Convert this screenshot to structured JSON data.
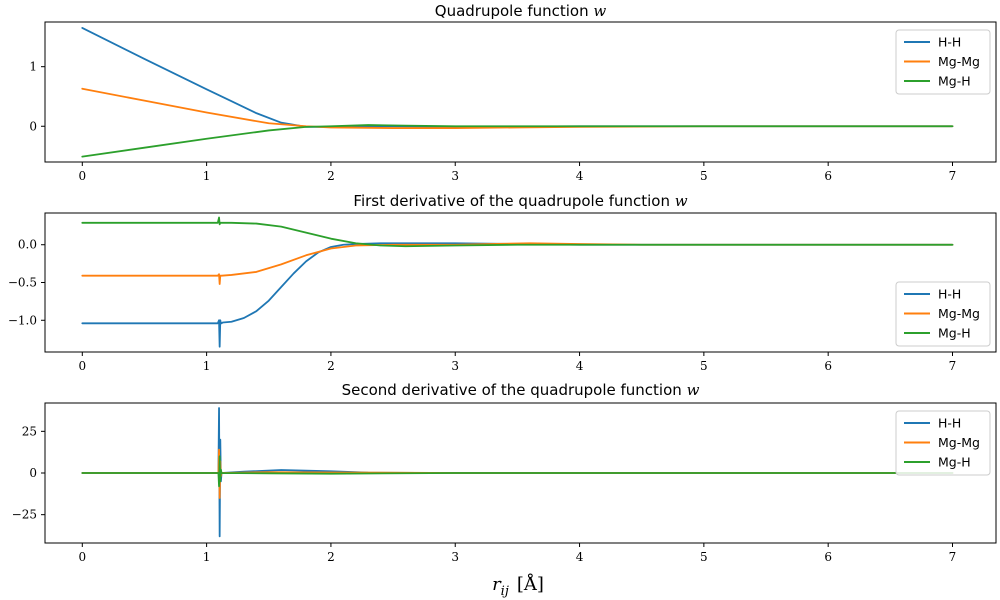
{
  "chart_data": [
    {
      "type": "line",
      "title": "Quadrupole function w",
      "title_prefix": "Quadrupole function",
      "title_var": "w",
      "xlabel": "",
      "ylabel": "",
      "xlim": [
        -0.3,
        7.35
      ],
      "ylim": [
        -0.6,
        1.75
      ],
      "xticks": [
        0,
        1,
        2,
        3,
        4,
        5,
        6,
        7
      ],
      "yticks": [
        0,
        1
      ],
      "legend": "top-right",
      "grid": false,
      "series": [
        {
          "name": "H-H",
          "color": "#1f77b4",
          "x": [
            0,
            0.5,
            1.0,
            1.2,
            1.4,
            1.6,
            1.8,
            2.0,
            2.2,
            2.5,
            3.0,
            4.0,
            5.0,
            6.0,
            7.0
          ],
          "y": [
            1.65,
            1.13,
            0.62,
            0.42,
            0.22,
            0.06,
            -0.01,
            -0.01,
            0.0,
            0.0,
            -0.01,
            0.0,
            0.0,
            0.0,
            0.0
          ]
        },
        {
          "name": "Mg-Mg",
          "color": "#ff7f0e",
          "x": [
            0,
            0.5,
            1.0,
            1.5,
            1.8,
            2.0,
            2.5,
            3.0,
            3.5,
            4.0,
            5.0,
            6.0,
            7.0
          ],
          "y": [
            0.63,
            0.43,
            0.23,
            0.05,
            0.0,
            -0.02,
            -0.03,
            -0.03,
            -0.02,
            -0.01,
            0.0,
            0.0,
            0.0
          ]
        },
        {
          "name": "Mg-H",
          "color": "#2ca02c",
          "x": [
            0,
            0.5,
            1.0,
            1.5,
            1.8,
            2.0,
            2.3,
            2.6,
            3.0,
            4.0,
            5.0,
            6.0,
            7.0
          ],
          "y": [
            -0.51,
            -0.36,
            -0.21,
            -0.07,
            -0.01,
            0.0,
            0.02,
            0.01,
            0.0,
            0.0,
            0.0,
            0.0,
            0.0
          ]
        }
      ]
    },
    {
      "type": "line",
      "title": "First derivative of the quadrupole function w",
      "title_prefix": "First derivative of the quadrupole function",
      "title_var": "w",
      "xlabel": "",
      "ylabel": "",
      "xlim": [
        -0.3,
        7.35
      ],
      "ylim": [
        -1.42,
        0.42
      ],
      "xticks": [
        0,
        1,
        2,
        3,
        4,
        5,
        6,
        7
      ],
      "yticks": [
        0.0,
        -0.5,
        -1.0
      ],
      "ytick_labels": [
        "0.0",
        "−0.5",
        "−1.0"
      ],
      "legend": "bottom-right",
      "grid": false,
      "series": [
        {
          "name": "H-H",
          "color": "#1f77b4",
          "x": [
            0,
            0.5,
            1.0,
            1.09,
            1.1,
            1.105,
            1.11,
            1.115,
            1.12,
            1.13,
            1.2,
            1.3,
            1.4,
            1.5,
            1.6,
            1.7,
            1.8,
            1.9,
            2.0,
            2.1,
            2.2,
            2.4,
            3.0,
            3.5,
            4.0,
            5.0,
            6.0,
            7.0
          ],
          "y": [
            -1.04,
            -1.04,
            -1.04,
            -1.04,
            -1.0,
            -1.35,
            -1.0,
            -1.04,
            -1.04,
            -1.03,
            -1.02,
            -0.97,
            -0.88,
            -0.74,
            -0.56,
            -0.38,
            -0.22,
            -0.1,
            -0.03,
            0.0,
            0.01,
            0.02,
            0.02,
            0.01,
            0.0,
            0.0,
            0.0,
            0.0
          ]
        },
        {
          "name": "Mg-Mg",
          "color": "#ff7f0e",
          "x": [
            0,
            0.5,
            1.0,
            1.09,
            1.1,
            1.105,
            1.11,
            1.12,
            1.2,
            1.4,
            1.6,
            1.8,
            2.0,
            2.2,
            2.5,
            3.0,
            3.6,
            4.0,
            4.5,
            5.0,
            6.0,
            7.0
          ],
          "y": [
            -0.41,
            -0.41,
            -0.41,
            -0.41,
            -0.39,
            -0.52,
            -0.41,
            -0.41,
            -0.4,
            -0.36,
            -0.26,
            -0.14,
            -0.05,
            -0.01,
            0.0,
            0.0,
            0.02,
            0.01,
            0.0,
            0.0,
            0.0,
            0.0
          ]
        },
        {
          "name": "Mg-H",
          "color": "#2ca02c",
          "x": [
            0,
            0.5,
            1.0,
            1.09,
            1.1,
            1.105,
            1.11,
            1.12,
            1.2,
            1.4,
            1.6,
            1.8,
            2.0,
            2.2,
            2.4,
            2.6,
            3.0,
            3.5,
            4.0,
            5.0,
            6.0,
            7.0
          ],
          "y": [
            0.29,
            0.29,
            0.29,
            0.29,
            0.36,
            0.27,
            0.29,
            0.29,
            0.29,
            0.28,
            0.24,
            0.16,
            0.08,
            0.02,
            -0.01,
            -0.02,
            -0.01,
            0.0,
            0.0,
            0.0,
            0.0,
            0.0
          ]
        }
      ]
    },
    {
      "type": "line",
      "title": "Second derivative of the quadrupole function w",
      "title_prefix": "Second derivative of the quadrupole function",
      "title_var": "w",
      "xlabel": "r_ij [Å]",
      "ylabel": "",
      "xlim": [
        -0.3,
        7.35
      ],
      "ylim": [
        -42,
        42
      ],
      "xticks": [
        0,
        1,
        2,
        3,
        4,
        5,
        6,
        7
      ],
      "yticks": [
        25,
        0,
        -25
      ],
      "ytick_labels": [
        "25",
        "0",
        "−25"
      ],
      "legend": "top-right",
      "grid": false,
      "series": [
        {
          "name": "H-H",
          "color": "#1f77b4",
          "x": [
            0,
            1.0,
            1.095,
            1.1,
            1.105,
            1.11,
            1.115,
            1.12,
            1.3,
            1.6,
            2.0,
            2.3,
            3.0,
            4.0,
            7.0
          ],
          "y": [
            0,
            0,
            0,
            39,
            -38,
            20,
            -5,
            0,
            0.8,
            1.8,
            1.0,
            0.2,
            0,
            0,
            0
          ]
        },
        {
          "name": "Mg-Mg",
          "color": "#ff7f0e",
          "x": [
            0,
            1.0,
            1.095,
            1.1,
            1.105,
            1.11,
            1.115,
            1.12,
            1.5,
            2.0,
            3.0,
            7.0
          ],
          "y": [
            0,
            0,
            0,
            14,
            -15,
            7,
            -2,
            0,
            0.5,
            0.3,
            0,
            0
          ]
        },
        {
          "name": "Mg-H",
          "color": "#2ca02c",
          "x": [
            0,
            1.0,
            1.095,
            1.1,
            1.105,
            1.11,
            1.115,
            1.12,
            1.5,
            2.0,
            3.0,
            7.0
          ],
          "y": [
            0,
            0,
            0,
            -8,
            10,
            -5,
            2,
            0,
            -0.2,
            -0.4,
            0,
            0
          ]
        }
      ]
    }
  ]
}
